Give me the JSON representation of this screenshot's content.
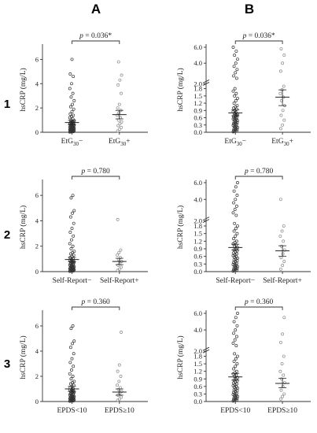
{
  "headers": {
    "columns": [
      "A",
      "B"
    ],
    "rows": [
      "1",
      "2",
      "3"
    ]
  },
  "chart_data": [
    {
      "panel": "1A",
      "type": "scatter",
      "ylabel": "hsCRP (mg/L)",
      "categories": [
        "EtG30−",
        "EtG30+"
      ],
      "cat_main": [
        "EtG",
        "EtG"
      ],
      "cat_sub": [
        "30",
        "30"
      ],
      "cat_sign": [
        "−",
        "+"
      ],
      "yticks": [
        "0",
        "2",
        "4",
        "6"
      ],
      "ylim": [
        0,
        7
      ],
      "p_text": "p = 0.036*",
      "mean": [
        0.8,
        1.45
      ],
      "ci": [
        [
          0.62,
          0.98
        ],
        [
          1.1,
          1.8
        ]
      ],
      "series": [
        {
          "values": [
            0.02,
            0.04,
            0.05,
            0.06,
            0.08,
            0.1,
            0.12,
            0.14,
            0.15,
            0.17,
            0.19,
            0.2,
            0.22,
            0.24,
            0.25,
            0.27,
            0.29,
            0.3,
            0.32,
            0.34,
            0.36,
            0.38,
            0.4,
            0.42,
            0.45,
            0.48,
            0.5,
            0.52,
            0.55,
            0.58,
            0.6,
            0.62,
            0.65,
            0.68,
            0.7,
            0.72,
            0.75,
            0.78,
            0.8,
            0.85,
            0.9,
            0.95,
            1.0,
            1.1,
            1.2,
            1.3,
            1.4,
            1.5,
            1.7,
            1.9,
            2.1,
            2.3,
            2.6,
            2.9,
            3.2,
            3.6,
            4.0,
            4.6,
            4.8,
            6.0
          ]
        },
        {
          "values": [
            0.1,
            0.25,
            0.4,
            0.55,
            0.7,
            0.85,
            1.0,
            1.2,
            1.4,
            1.6,
            1.8,
            2.0,
            2.3,
            3.2,
            3.9,
            4.3,
            4.7,
            5.8
          ]
        }
      ]
    },
    {
      "panel": "1B",
      "type": "scatter",
      "ylabel": "hsCRP (mg/L)",
      "categories": [
        "EtG30−",
        "EtG30+"
      ],
      "cat_main": [
        "EtG",
        "EtG"
      ],
      "cat_sub": [
        "30",
        "30"
      ],
      "cat_sign": [
        "−",
        "+"
      ],
      "yticks": [
        "0.0",
        "0.3",
        "0.6",
        "0.9",
        "1.2",
        "1.5",
        "1.8",
        "2.0",
        "4.0",
        "6.0"
      ],
      "axis_break": true,
      "p_text": "p = 0.036*",
      "mean": [
        0.8,
        1.45
      ],
      "ci": [
        [
          0.68,
          0.92
        ],
        [
          1.1,
          1.75
        ]
      ],
      "series": [
        {
          "values": [
            0.02,
            0.04,
            0.06,
            0.08,
            0.1,
            0.12,
            0.15,
            0.18,
            0.2,
            0.22,
            0.25,
            0.28,
            0.3,
            0.33,
            0.35,
            0.38,
            0.4,
            0.42,
            0.45,
            0.48,
            0.5,
            0.53,
            0.55,
            0.58,
            0.6,
            0.63,
            0.65,
            0.68,
            0.7,
            0.72,
            0.75,
            0.78,
            0.8,
            0.85,
            0.9,
            0.95,
            1.0,
            1.05,
            1.1,
            1.2,
            1.3,
            1.4,
            1.5,
            1.6,
            1.7,
            1.8,
            2.1,
            2.4,
            2.8,
            3.2,
            3.6,
            4.0,
            4.5,
            5.0,
            5.5,
            6.0
          ]
        },
        {
          "values": [
            0.15,
            0.3,
            0.5,
            0.7,
            0.9,
            1.1,
            1.3,
            1.45,
            1.6,
            1.75,
            1.9,
            3.0,
            4.0,
            5.0,
            5.8
          ]
        }
      ]
    },
    {
      "panel": "2A",
      "type": "scatter",
      "ylabel": "hsCRP (mg/L)",
      "categories": [
        "Self-Report−",
        "Self-Report+"
      ],
      "cat_main": [
        "Self-Report",
        "Self-Report"
      ],
      "cat_sub": [
        "",
        ""
      ],
      "cat_sign": [
        "−",
        "+"
      ],
      "yticks": [
        "0",
        "2",
        "4",
        "6"
      ],
      "ylim": [
        0,
        7
      ],
      "p_text": "p = 0.780",
      "mean": [
        0.95,
        0.8
      ],
      "ci": [
        [
          0.78,
          1.12
        ],
        [
          0.55,
          1.05
        ]
      ],
      "series": [
        {
          "values": [
            0.02,
            0.04,
            0.05,
            0.07,
            0.09,
            0.1,
            0.12,
            0.14,
            0.16,
            0.18,
            0.2,
            0.22,
            0.24,
            0.26,
            0.28,
            0.3,
            0.32,
            0.35,
            0.38,
            0.4,
            0.43,
            0.46,
            0.5,
            0.53,
            0.56,
            0.6,
            0.63,
            0.66,
            0.7,
            0.74,
            0.78,
            0.82,
            0.86,
            0.9,
            0.95,
            1.0,
            1.1,
            1.2,
            1.3,
            1.4,
            1.5,
            1.6,
            1.8,
            2.0,
            2.2,
            2.5,
            2.8,
            3.1,
            3.4,
            3.8,
            4.3,
            4.6,
            4.8,
            5.8,
            6.0
          ]
        },
        {
          "values": [
            0.1,
            0.2,
            0.35,
            0.5,
            0.65,
            0.8,
            0.95,
            1.1,
            1.3,
            1.5,
            1.7,
            4.1
          ]
        }
      ]
    },
    {
      "panel": "2B",
      "type": "scatter",
      "ylabel": "hsCRP (mg/L)",
      "categories": [
        "Self-Report−",
        "Self-Report+"
      ],
      "cat_main": [
        "Self-Report",
        "Self-Report"
      ],
      "cat_sub": [
        "",
        ""
      ],
      "cat_sign": [
        "−",
        "+"
      ],
      "yticks": [
        "0.0",
        "0.3",
        "0.6",
        "0.9",
        "1.2",
        "1.5",
        "1.8",
        "2.0",
        "4.0",
        "6.0"
      ],
      "axis_break": true,
      "p_text": "p = 0.780",
      "mean": [
        0.95,
        0.82
      ],
      "ci": [
        [
          0.85,
          1.08
        ],
        [
          0.6,
          1.02
        ]
      ],
      "series": [
        {
          "values": [
            0.02,
            0.04,
            0.06,
            0.08,
            0.1,
            0.12,
            0.15,
            0.18,
            0.2,
            0.22,
            0.25,
            0.28,
            0.3,
            0.33,
            0.36,
            0.4,
            0.43,
            0.46,
            0.5,
            0.53,
            0.56,
            0.6,
            0.63,
            0.66,
            0.7,
            0.74,
            0.78,
            0.82,
            0.86,
            0.9,
            0.95,
            1.0,
            1.05,
            1.1,
            1.15,
            1.2,
            1.3,
            1.4,
            1.5,
            1.6,
            1.7,
            1.8,
            1.9,
            2.1,
            2.4,
            2.8,
            3.2,
            3.6,
            4.0,
            4.5,
            5.0,
            5.5,
            6.0
          ]
        },
        {
          "values": [
            0.1,
            0.25,
            0.4,
            0.55,
            0.7,
            0.85,
            1.0,
            1.2,
            1.4,
            1.6,
            1.8,
            4.0
          ]
        }
      ]
    },
    {
      "panel": "3A",
      "type": "scatter",
      "ylabel": "hsCRP (mg/L)",
      "categories": [
        "EPDS<10",
        "EPDS≥10"
      ],
      "cat_main": [
        "EPDS<10",
        "EPDS≥10"
      ],
      "cat_sub": [
        "",
        ""
      ],
      "cat_sign": [
        "",
        ""
      ],
      "yticks": [
        "0",
        "2",
        "4",
        "6"
      ],
      "ylim": [
        0,
        7
      ],
      "p_text": "p = 0.360",
      "mean": [
        1.0,
        0.75
      ],
      "ci": [
        [
          0.8,
          1.2
        ],
        [
          0.5,
          1.0
        ]
      ],
      "series": [
        {
          "values": [
            0.02,
            0.04,
            0.05,
            0.07,
            0.09,
            0.1,
            0.12,
            0.14,
            0.16,
            0.18,
            0.2,
            0.22,
            0.24,
            0.26,
            0.28,
            0.3,
            0.32,
            0.35,
            0.38,
            0.4,
            0.43,
            0.46,
            0.5,
            0.53,
            0.56,
            0.6,
            0.63,
            0.66,
            0.7,
            0.74,
            0.78,
            0.82,
            0.86,
            0.9,
            0.95,
            1.0,
            1.1,
            1.2,
            1.3,
            1.4,
            1.5,
            1.6,
            1.8,
            2.0,
            2.2,
            2.5,
            2.8,
            3.1,
            3.4,
            3.8,
            4.3,
            4.6,
            4.8,
            5.8,
            6.0
          ]
        },
        {
          "values": [
            0.1,
            0.2,
            0.35,
            0.5,
            0.65,
            0.8,
            0.95,
            1.1,
            1.3,
            1.6,
            2.0,
            2.4,
            2.9,
            5.5
          ]
        }
      ]
    },
    {
      "panel": "3B",
      "type": "scatter",
      "ylabel": "hsCRP (mg/L)",
      "categories": [
        "EPDS<10",
        "EPDS≥10"
      ],
      "cat_main": [
        "EPDS<10",
        "EPDS≥10"
      ],
      "cat_sub": [
        "",
        ""
      ],
      "cat_sign": [
        "",
        ""
      ],
      "yticks": [
        "0.0",
        "0.3",
        "0.6",
        "0.9",
        "1.2",
        "1.5",
        "1.8",
        "2.0",
        "4.0",
        "6.0"
      ],
      "axis_break": true,
      "p_text": "p = 0.360",
      "mean": [
        0.98,
        0.72
      ],
      "ci": [
        [
          0.85,
          1.12
        ],
        [
          0.55,
          0.92
        ]
      ],
      "series": [
        {
          "values": [
            0.02,
            0.04,
            0.06,
            0.08,
            0.1,
            0.12,
            0.15,
            0.18,
            0.2,
            0.22,
            0.25,
            0.28,
            0.3,
            0.33,
            0.36,
            0.4,
            0.43,
            0.46,
            0.5,
            0.53,
            0.56,
            0.6,
            0.63,
            0.66,
            0.7,
            0.74,
            0.78,
            0.82,
            0.86,
            0.9,
            0.95,
            1.0,
            1.05,
            1.1,
            1.15,
            1.2,
            1.3,
            1.4,
            1.5,
            1.6,
            1.7,
            1.8,
            1.9,
            2.1,
            2.4,
            2.8,
            3.2,
            3.6,
            4.0,
            4.5,
            5.0,
            5.5,
            6.0
          ]
        },
        {
          "values": [
            0.1,
            0.2,
            0.3,
            0.45,
            0.6,
            0.75,
            0.9,
            1.05,
            1.2,
            1.5,
            1.8,
            2.5,
            3.5,
            5.5
          ]
        }
      ]
    }
  ]
}
